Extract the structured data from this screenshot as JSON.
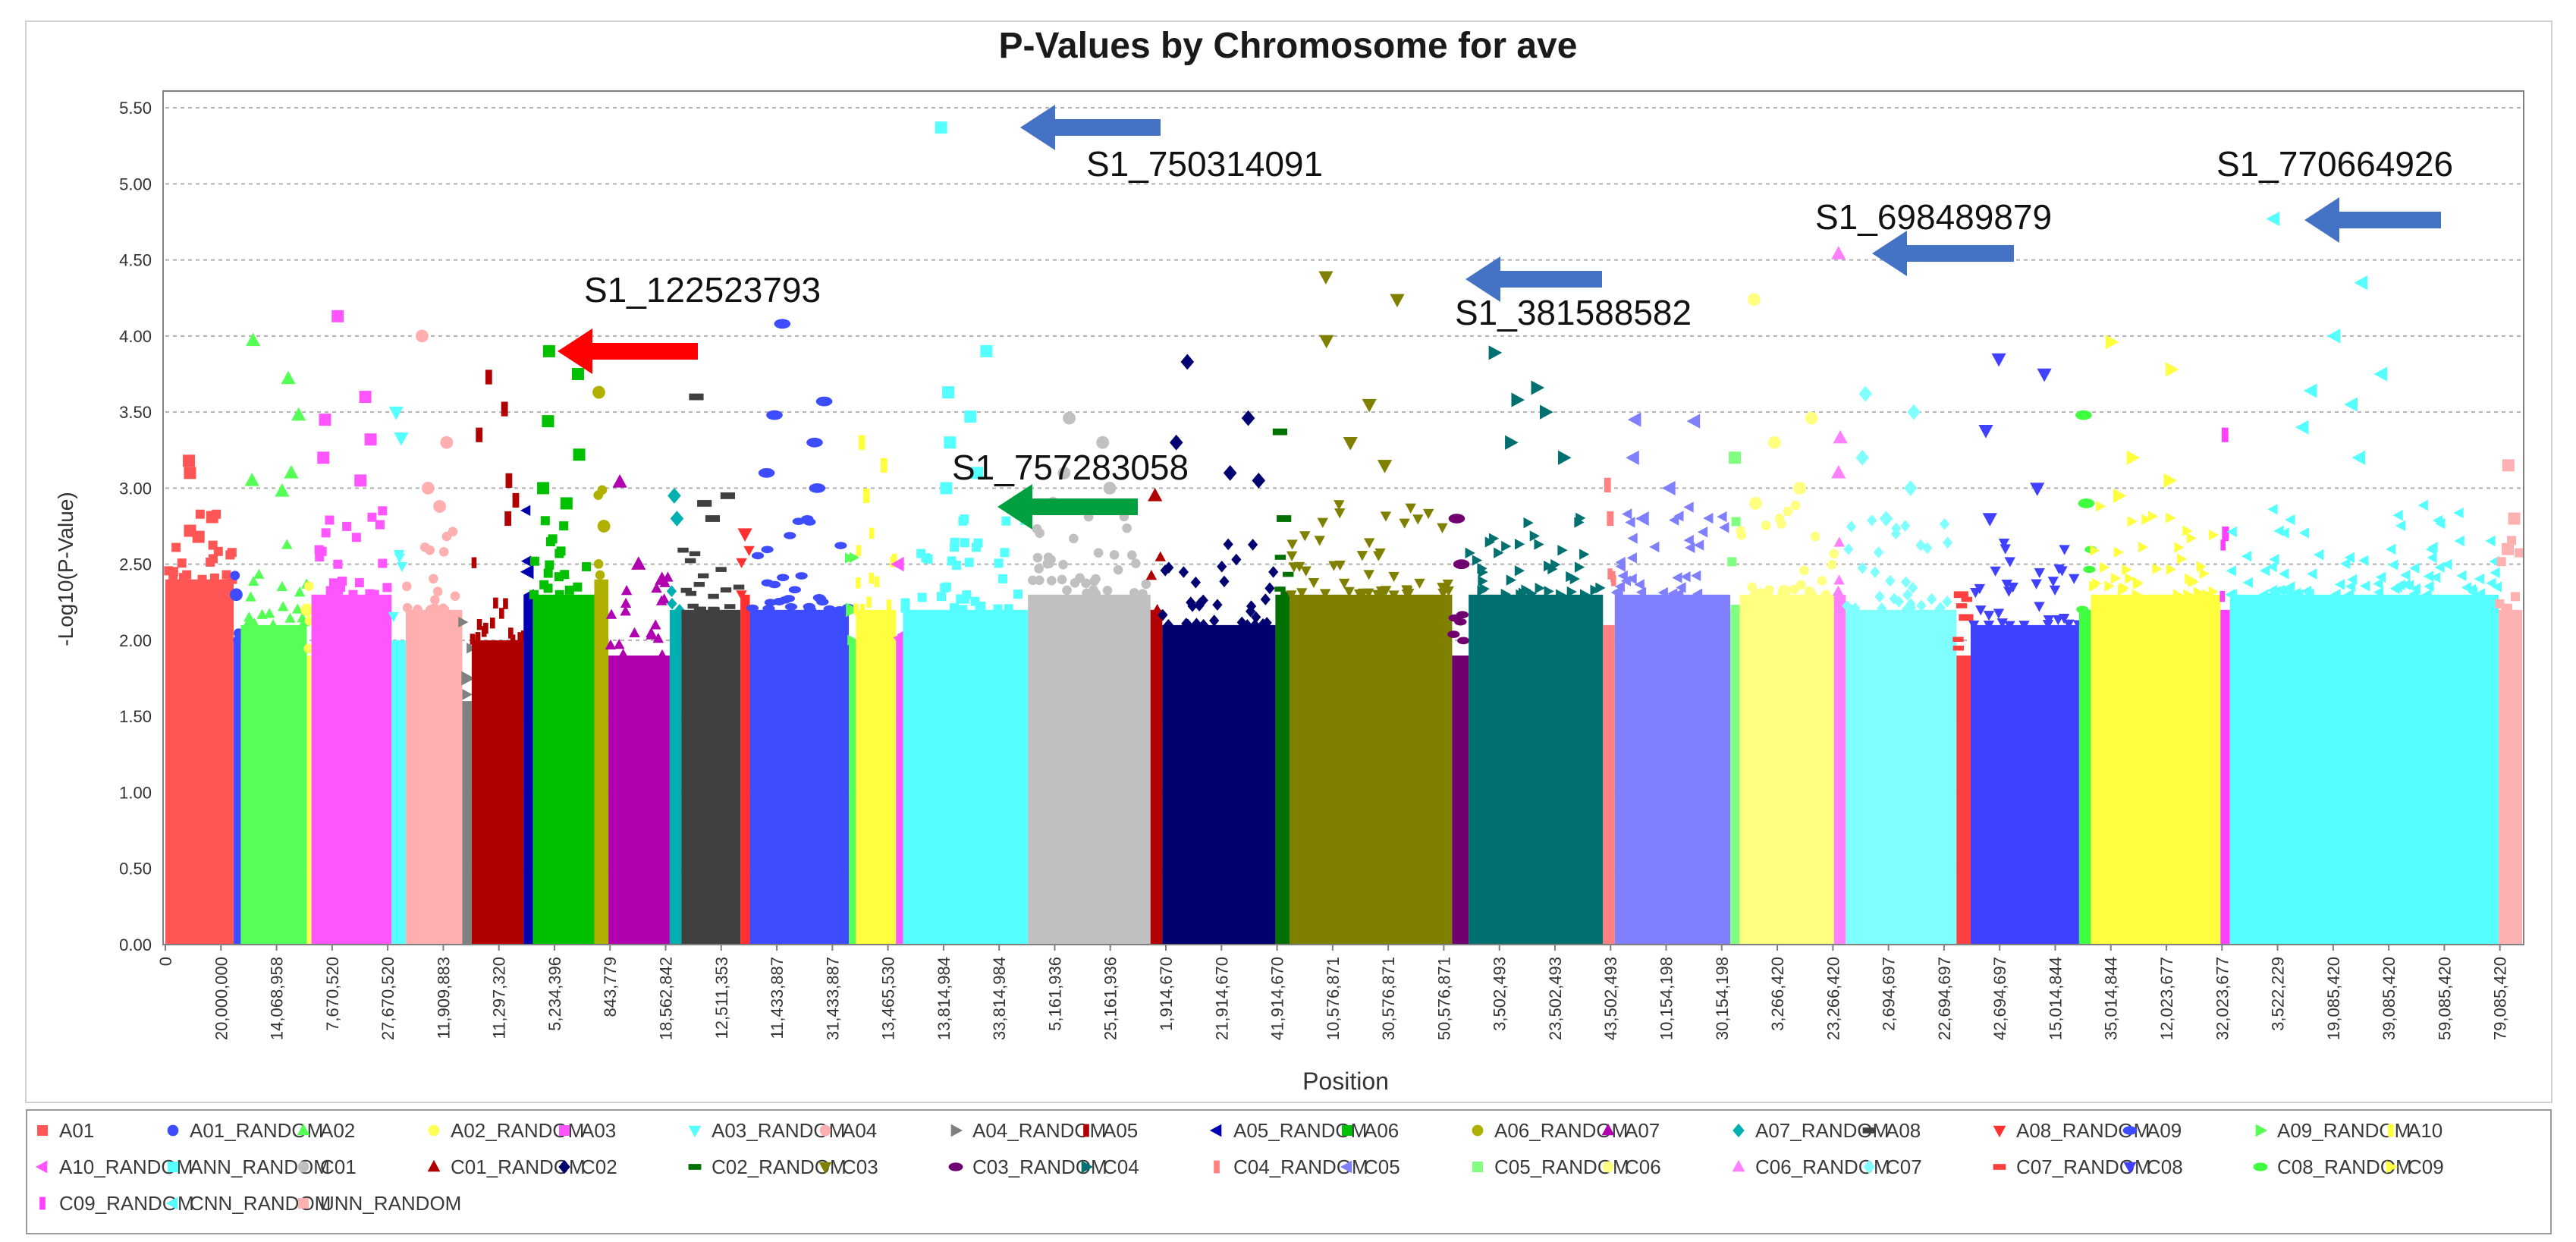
{
  "chart_data": {
    "type": "scatter",
    "title": "P-Values by Chromosome for ave",
    "xlabel": "Position",
    "ylabel": "-Log10(P-Value)",
    "ylim": [
      0,
      5.6
    ],
    "y_ticks": [
      "0.00",
      "0.50",
      "1.00",
      "1.50",
      "2.00",
      "2.50",
      "3.00",
      "3.50",
      "4.00",
      "4.50",
      "5.00",
      "5.50"
    ],
    "x_tick_labels": [
      "0",
      "20,000,000",
      "14,068,958",
      "7,670,520",
      "27,670,520",
      "11,909,883",
      "11,297,320",
      "5,234,396",
      "843,779",
      "18,562,842",
      "12,511,353",
      "11,433,887",
      "31,433,887",
      "13,465,530",
      "13,814,984",
      "33,814,984",
      "5,161,936",
      "25,161,936",
      "1,914,670",
      "21,914,670",
      "41,914,670",
      "10,576,871",
      "30,576,871",
      "50,576,871",
      "3,502,493",
      "23,502,493",
      "43,502,493",
      "10,154,198",
      "30,154,198",
      "3,266,420",
      "23,266,420",
      "2,694,697",
      "22,694,697",
      "42,694,697",
      "15,014,844",
      "35,014,844",
      "12,023,677",
      "32,023,677",
      "3,522,229",
      "19,085,420",
      "39,085,420",
      "59,085,420",
      "79,085,420"
    ],
    "grid": true,
    "legend_position": "bottom",
    "series": [
      {
        "name": "A01",
        "color": "#ff5555",
        "marker": "square",
        "band": [
          0,
          0.029
        ],
        "base": 2.4,
        "peaks": [
          3.18,
          2.81,
          2.72,
          2.68,
          3.1
        ]
      },
      {
        "name": "A01_RANDOM",
        "color": "#3d4cff",
        "marker": "circle",
        "band": [
          0.029,
          0.032
        ],
        "base": 2.0,
        "peaks": [
          2.3
        ]
      },
      {
        "name": "A02",
        "color": "#55ff55",
        "marker": "triangle-up",
        "band": [
          0.032,
          0.06
        ],
        "base": 2.1,
        "peaks": [
          3.97,
          3.72,
          3.48,
          3.1,
          3.05,
          2.98
        ]
      },
      {
        "name": "A02_RANDOM",
        "color": "#ffff55",
        "marker": "circle",
        "band": [
          0.06,
          0.062
        ],
        "base": 1.9,
        "peaks": [
          2.2
        ]
      },
      {
        "name": "A03",
        "color": "#ff55ff",
        "marker": "square",
        "band": [
          0.062,
          0.096
        ],
        "base": 2.3,
        "peaks": [
          4.13,
          3.6,
          3.45,
          3.32,
          3.2,
          3.05
        ]
      },
      {
        "name": "A03_RANDOM",
        "color": "#55ffff",
        "marker": "triangle-down",
        "band": [
          0.096,
          0.102
        ],
        "base": 2.0,
        "peaks": [
          3.5,
          3.33
        ]
      },
      {
        "name": "A04",
        "color": "#ffafaf",
        "marker": "circle",
        "band": [
          0.102,
          0.126
        ],
        "base": 2.2,
        "peaks": [
          4.0,
          3.3,
          3.0,
          2.88
        ]
      },
      {
        "name": "A04_RANDOM",
        "color": "#808080",
        "marker": "triangle-right",
        "band": [
          0.126,
          0.13
        ],
        "base": 1.6,
        "peaks": [
          1.75
        ]
      },
      {
        "name": "A05",
        "color": "#b00000",
        "marker": "rect-v",
        "band": [
          0.13,
          0.152
        ],
        "base": 2.0,
        "peaks": [
          3.73,
          3.52,
          3.35,
          3.05,
          2.92,
          2.8
        ]
      },
      {
        "name": "A05_RANDOM",
        "color": "#0000b0",
        "marker": "triangle-left",
        "band": [
          0.152,
          0.156
        ],
        "base": 2.3,
        "peaks": [
          2.45
        ]
      },
      {
        "name": "A06",
        "color": "#00c000",
        "marker": "square",
        "band": [
          0.156,
          0.182
        ],
        "base": 2.3,
        "peaks": [
          3.9,
          3.75,
          3.44,
          3.22,
          3.0,
          2.9
        ]
      },
      {
        "name": "A06_RANDOM",
        "color": "#b0b000",
        "marker": "circle",
        "band": [
          0.182,
          0.188
        ],
        "base": 2.4,
        "peaks": [
          3.63,
          2.75
        ]
      },
      {
        "name": "A07",
        "color": "#b000b0",
        "marker": "triangle-up",
        "band": [
          0.188,
          0.214
        ],
        "base": 1.9,
        "peaks": [
          3.04,
          2.5,
          2.4
        ]
      },
      {
        "name": "A07_RANDOM",
        "color": "#00b0b0",
        "marker": "diamond",
        "band": [
          0.214,
          0.219
        ],
        "base": 2.2,
        "peaks": [
          2.95,
          2.8
        ]
      },
      {
        "name": "A08",
        "color": "#404040",
        "marker": "rect-h",
        "band": [
          0.219,
          0.244
        ],
        "base": 2.2,
        "peaks": [
          3.6,
          2.95,
          2.9,
          2.8
        ]
      },
      {
        "name": "A08_RANDOM",
        "color": "#ff3030",
        "marker": "triangle-down",
        "band": [
          0.244,
          0.248
        ],
        "base": 2.3,
        "peaks": [
          2.7
        ]
      },
      {
        "name": "A09",
        "color": "#3d4cff",
        "marker": "ellipse",
        "band": [
          0.248,
          0.29
        ],
        "base": 2.2,
        "peaks": [
          4.08,
          3.57,
          3.48,
          3.3,
          3.1,
          3.0
        ]
      },
      {
        "name": "A09_RANDOM",
        "color": "#55ff55",
        "marker": "triangle-right",
        "band": [
          0.29,
          0.293
        ],
        "base": 2.0,
        "peaks": [
          2.2
        ]
      },
      {
        "name": "A10",
        "color": "#ffff40",
        "marker": "rect-v",
        "band": [
          0.293,
          0.31
        ],
        "base": 2.2,
        "peaks": [
          3.3,
          3.15,
          2.95
        ]
      },
      {
        "name": "A10_RANDOM",
        "color": "#ff55ff",
        "marker": "triangle-left",
        "band": [
          0.31,
          0.313
        ],
        "base": 2.0,
        "peaks": [
          2.5
        ]
      },
      {
        "name": "ANN_RANDOM",
        "color": "#55ffff",
        "marker": "square",
        "band": [
          0.313,
          0.366
        ],
        "base": 2.2,
        "peaks": [
          5.37,
          3.9,
          3.63,
          3.47,
          3.3,
          3.1,
          3.0
        ]
      },
      {
        "name": "C01",
        "color": "#c0c0c0",
        "marker": "circle",
        "band": [
          0.366,
          0.418
        ],
        "base": 2.3,
        "peaks": [
          3.46,
          3.3,
          3.1,
          3.0,
          2.9
        ]
      },
      {
        "name": "C01_RANDOM",
        "color": "#b00000",
        "marker": "triangle-up",
        "band": [
          0.418,
          0.423
        ],
        "base": 2.2,
        "peaks": [
          2.95
        ]
      },
      {
        "name": "C02",
        "color": "#000070",
        "marker": "diamond",
        "band": [
          0.423,
          0.471
        ],
        "base": 2.1,
        "peaks": [
          3.83,
          3.46,
          3.3,
          3.1,
          3.05
        ]
      },
      {
        "name": "C02_RANDOM",
        "color": "#007000",
        "marker": "rect-h",
        "band": [
          0.471,
          0.477
        ],
        "base": 2.3,
        "peaks": [
          3.37,
          2.8
        ]
      },
      {
        "name": "C03",
        "color": "#808000",
        "marker": "triangle-down",
        "band": [
          0.477,
          0.546
        ],
        "base": 2.3,
        "peaks": [
          4.39,
          4.24,
          3.97,
          3.55,
          3.3,
          3.15
        ]
      },
      {
        "name": "C03_RANDOM",
        "color": "#700070",
        "marker": "ellipse",
        "band": [
          0.546,
          0.553
        ],
        "base": 1.9,
        "peaks": [
          2.8,
          2.5
        ]
      },
      {
        "name": "C04",
        "color": "#007070",
        "marker": "triangle-right",
        "band": [
          0.553,
          0.61
        ],
        "base": 2.3,
        "peaks": [
          3.89,
          3.66,
          3.58,
          3.5,
          3.3,
          3.2
        ]
      },
      {
        "name": "C04_RANDOM",
        "color": "#ff8080",
        "marker": "rect-v",
        "band": [
          0.61,
          0.615
        ],
        "base": 2.1,
        "peaks": [
          3.02,
          2.8
        ]
      },
      {
        "name": "C05",
        "color": "#8080ff",
        "marker": "triangle-left",
        "band": [
          0.615,
          0.664
        ],
        "base": 2.3,
        "peaks": [
          3.45,
          3.44,
          3.2,
          3.0,
          2.8
        ]
      },
      {
        "name": "C05_RANDOM",
        "color": "#80ff80",
        "marker": "square",
        "band": [
          0.664,
          0.668
        ],
        "base": 2.2,
        "peaks": [
          3.2
        ]
      },
      {
        "name": "C06",
        "color": "#ffff80",
        "marker": "circle",
        "band": [
          0.668,
          0.708
        ],
        "base": 2.3,
        "peaks": [
          4.24,
          3.46,
          3.3,
          3.0,
          2.9
        ]
      },
      {
        "name": "C06_RANDOM",
        "color": "#ff80ff",
        "marker": "triangle-up",
        "band": [
          0.708,
          0.713
        ],
        "base": 2.3,
        "peaks": [
          4.54,
          3.33,
          3.1
        ]
      },
      {
        "name": "C07",
        "color": "#80ffff",
        "marker": "diamond",
        "band": [
          0.713,
          0.76
        ],
        "base": 2.2,
        "peaks": [
          3.62,
          3.5,
          3.2,
          3.0,
          2.8
        ]
      },
      {
        "name": "C07_RANDOM",
        "color": "#ff4040",
        "marker": "rect-h",
        "band": [
          0.76,
          0.766
        ],
        "base": 1.9,
        "peaks": [
          2.3,
          2.15
        ]
      },
      {
        "name": "C08",
        "color": "#4040ff",
        "marker": "triangle-down",
        "band": [
          0.766,
          0.812
        ],
        "base": 2.1,
        "peaks": [
          3.85,
          3.75,
          3.38,
          3.0,
          2.8
        ]
      },
      {
        "name": "C08_RANDOM",
        "color": "#40ff40",
        "marker": "ellipse",
        "band": [
          0.812,
          0.817
        ],
        "base": 2.2,
        "peaks": [
          3.48,
          2.9
        ]
      },
      {
        "name": "C09",
        "color": "#ffff40",
        "marker": "triangle-right",
        "band": [
          0.817,
          0.872
        ],
        "base": 2.3,
        "peaks": [
          3.96,
          3.78,
          3.2,
          3.05,
          2.95
        ]
      },
      {
        "name": "C09_RANDOM",
        "color": "#ff40ff",
        "marker": "rect-v",
        "band": [
          0.872,
          0.876
        ],
        "base": 2.2,
        "peaks": [
          3.35,
          2.7
        ]
      },
      {
        "name": "CNN_RANDOM",
        "color": "#55ffff",
        "marker": "triangle-left",
        "band": [
          0.876,
          0.99
        ],
        "base": 2.3,
        "peaks": [
          4.77,
          4.35,
          4.0,
          3.75,
          3.64,
          3.55,
          3.4,
          3.2
        ]
      },
      {
        "name": "UNN_RANDOM",
        "color": "#ffb0b0",
        "marker": "square",
        "band": [
          0.99,
          1.0
        ],
        "base": 2.2,
        "peaks": [
          3.15,
          2.8,
          2.6
        ]
      }
    ],
    "annotations": [
      {
        "label": "S1_750314091",
        "x_frac": 0.359,
        "y": 5.37,
        "arrow_color": "#4472c4"
      },
      {
        "label": "S1_122523793",
        "x_frac": 0.168,
        "y": 3.9,
        "arrow_color": "#ff0000"
      },
      {
        "label": "S1_757283058",
        "x_frac": 0.357,
        "y": 2.9,
        "arrow_color": "#00a040"
      },
      {
        "label": "S1_381588582",
        "x_frac": 0.543,
        "y": 4.39,
        "arrow_color": "#4472c4"
      },
      {
        "label": "S1_698489879",
        "x_frac": 0.709,
        "y": 4.54,
        "arrow_color": "#4472c4"
      },
      {
        "label": "S1_770664926",
        "x_frac": 0.898,
        "y": 4.77,
        "arrow_color": "#4472c4"
      }
    ]
  }
}
